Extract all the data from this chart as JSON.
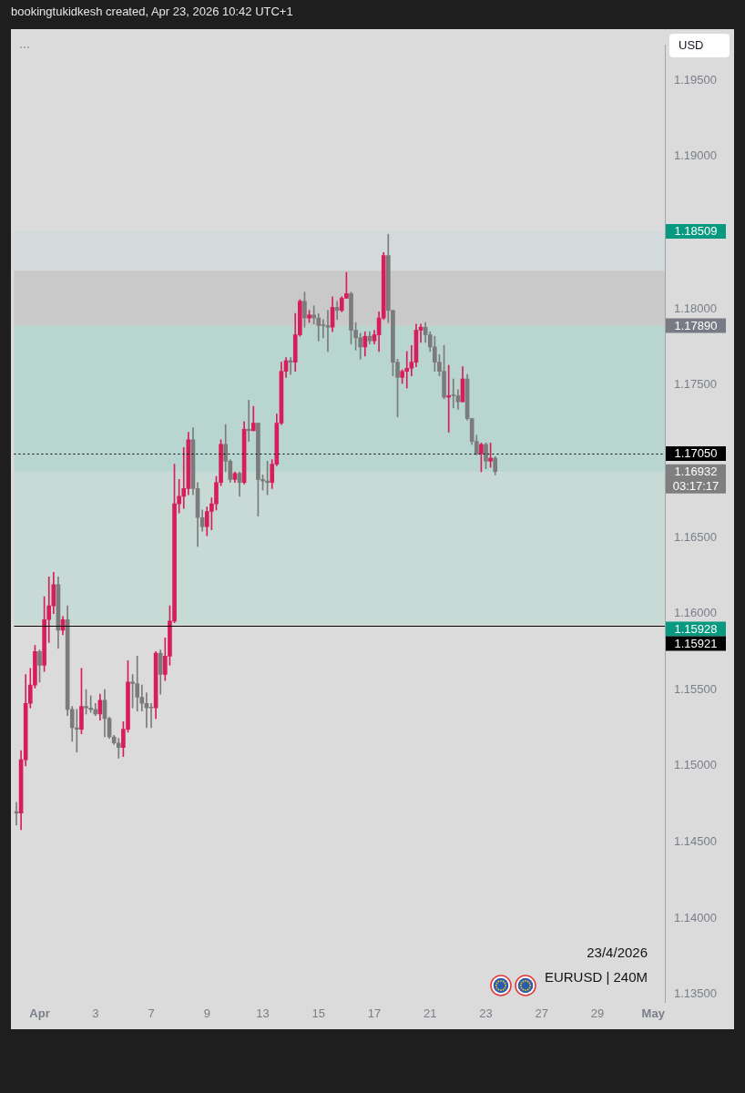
{
  "chart_data": {
    "type": "candlestick",
    "title": "bookingtukidkesh created, Apr 23, 2026 10:42 UTC+1",
    "ylabel": "USD",
    "categories": [
      null,
      null,
      null,
      null,
      null,
      "Apr",
      null,
      null,
      null,
      null,
      null,
      null,
      null,
      null,
      null,
      null,
      null,
      "3",
      null,
      null,
      null,
      null,
      null,
      null,
      null,
      null,
      null,
      null,
      null,
      "7",
      null,
      null,
      null,
      null,
      null,
      null,
      null,
      null,
      null,
      null,
      null,
      "9",
      null,
      null,
      null,
      null,
      null,
      null,
      null,
      null,
      null,
      null,
      null,
      "13",
      null,
      null,
      null,
      null,
      null,
      null,
      null,
      null,
      null,
      null,
      null,
      "15",
      null,
      null,
      null,
      null,
      null,
      null,
      null,
      null,
      null,
      null,
      null,
      "17",
      null,
      null,
      null,
      null,
      null,
      null,
      null,
      null,
      null,
      null,
      null,
      "21",
      null,
      null,
      null,
      null,
      null,
      null,
      null,
      null,
      null,
      null,
      null,
      "23",
      null,
      null,
      null,
      null,
      null,
      null,
      null,
      null,
      null,
      null,
      null,
      "27",
      null,
      null,
      null,
      null,
      null,
      null,
      null,
      null,
      null,
      null,
      null,
      "29",
      null,
      null,
      null,
      null,
      null,
      null,
      null,
      null,
      null,
      null,
      null,
      "May",
      null,
      null
    ],
    "ohlc": [
      [
        1.147,
        1.1476,
        1.1461,
        1.1469
      ],
      [
        1.1469,
        1.151,
        1.1458,
        1.1504
      ],
      [
        1.1504,
        1.156,
        1.15,
        1.1541
      ],
      [
        1.1541,
        1.1564,
        1.1538,
        1.1553
      ],
      [
        1.1553,
        1.1579,
        1.1551,
        1.1575
      ],
      [
        1.1575,
        1.1576,
        1.1555,
        1.1566
      ],
      [
        1.1566,
        1.1611,
        1.1562,
        1.1596
      ],
      [
        1.1596,
        1.1624,
        1.1581,
        1.1605
      ],
      [
        1.1605,
        1.1627,
        1.16,
        1.1619
      ],
      [
        1.1619,
        1.1624,
        1.1577,
        1.1589
      ],
      [
        1.1589,
        1.1598,
        1.1586,
        1.1596
      ],
      [
        1.1596,
        1.1605,
        1.1533,
        1.1537
      ],
      [
        1.1537,
        1.1539,
        1.1516,
        1.1525
      ],
      [
        1.1525,
        1.1537,
        1.1509,
        1.1524
      ],
      [
        1.1524,
        1.1564,
        1.1521,
        1.1539
      ],
      [
        1.1539,
        1.155,
        1.1534,
        1.1538
      ],
      [
        1.1538,
        1.1546,
        1.1535,
        1.1537
      ],
      [
        1.1537,
        1.1541,
        1.1533,
        1.1534
      ],
      [
        1.1534,
        1.1547,
        1.153,
        1.1543
      ],
      [
        1.1543,
        1.155,
        1.1519,
        1.1531
      ],
      [
        1.1531,
        1.1532,
        1.1518,
        1.1519
      ],
      [
        1.1519,
        1.152,
        1.1514,
        1.1515
      ],
      [
        1.1515,
        1.1518,
        1.1505,
        1.1512
      ],
      [
        1.1512,
        1.1529,
        1.1506,
        1.1524
      ],
      [
        1.1524,
        1.1569,
        1.1522,
        1.1555
      ],
      [
        1.1555,
        1.156,
        1.1538,
        1.1554
      ],
      [
        1.1554,
        1.1572,
        1.1536,
        1.1545
      ],
      [
        1.1545,
        1.1553,
        1.1536,
        1.1541
      ],
      [
        1.1541,
        1.1548,
        1.1525,
        1.1538
      ],
      [
        1.1538,
        1.1541,
        1.1525,
        1.1538
      ],
      [
        1.1538,
        1.1575,
        1.1531,
        1.1574
      ],
      [
        1.1574,
        1.1576,
        1.1547,
        1.156
      ],
      [
        1.156,
        1.1584,
        1.1556,
        1.1572
      ],
      [
        1.1572,
        1.1605,
        1.1566,
        1.1595
      ],
      [
        1.1595,
        1.1698,
        1.1594,
        1.1672
      ],
      [
        1.1672,
        1.1688,
        1.1666,
        1.1677
      ],
      [
        1.1677,
        1.1709,
        1.1669,
        1.1682
      ],
      [
        1.1682,
        1.1719,
        1.1678,
        1.1714
      ],
      [
        1.1714,
        1.1722,
        1.1678,
        1.1682
      ],
      [
        1.1682,
        1.1686,
        1.1644,
        1.1663
      ],
      [
        1.1663,
        1.1668,
        1.1654,
        1.1657
      ],
      [
        1.1657,
        1.167,
        1.1651,
        1.1667
      ],
      [
        1.1667,
        1.1676,
        1.1655,
        1.1672
      ],
      [
        1.1672,
        1.169,
        1.1668,
        1.1686
      ],
      [
        1.1686,
        1.1714,
        1.1684,
        1.1711
      ],
      [
        1.1711,
        1.1724,
        1.1693,
        1.17
      ],
      [
        1.17,
        1.1701,
        1.1686,
        1.1688
      ],
      [
        1.1688,
        1.1693,
        1.1686,
        1.1692
      ],
      [
        1.1692,
        1.1693,
        1.1677,
        1.1686
      ],
      [
        1.1686,
        1.1726,
        1.1685,
        1.1721
      ],
      [
        1.1721,
        1.174,
        1.1713,
        1.172
      ],
      [
        1.172,
        1.1736,
        1.172,
        1.1725
      ],
      [
        1.1725,
        1.1725,
        1.1664,
        1.1688
      ],
      [
        1.1688,
        1.1691,
        1.1681,
        1.1687
      ],
      [
        1.1687,
        1.17,
        1.1678,
        1.1686
      ],
      [
        1.1686,
        1.1701,
        1.1682,
        1.1698
      ],
      [
        1.1698,
        1.1731,
        1.1697,
        1.1725
      ],
      [
        1.1725,
        1.1765,
        1.1724,
        1.1759
      ],
      [
        1.1759,
        1.1768,
        1.1755,
        1.1766
      ],
      [
        1.1766,
        1.1768,
        1.1757,
        1.1765
      ],
      [
        1.1765,
        1.1797,
        1.1759,
        1.1783
      ],
      [
        1.1783,
        1.1806,
        1.1782,
        1.1805
      ],
      [
        1.1805,
        1.1811,
        1.1788,
        1.1794
      ],
      [
        1.1794,
        1.1799,
        1.1791,
        1.1796
      ],
      [
        1.1796,
        1.1802,
        1.179,
        1.1794
      ],
      [
        1.1794,
        1.1797,
        1.1779,
        1.1789
      ],
      [
        1.1789,
        1.1793,
        1.1781,
        1.1789
      ],
      [
        1.1789,
        1.1799,
        1.1772,
        1.1788
      ],
      [
        1.1788,
        1.1808,
        1.1785,
        1.1801
      ],
      [
        1.1801,
        1.1805,
        1.1793,
        1.1799
      ],
      [
        1.1799,
        1.1808,
        1.1798,
        1.1807
      ],
      [
        1.1807,
        1.1824,
        1.1807,
        1.181
      ],
      [
        1.181,
        1.1811,
        1.1777,
        1.1786
      ],
      [
        1.1786,
        1.1791,
        1.1773,
        1.1781
      ],
      [
        1.1781,
        1.1784,
        1.1767,
        1.1775
      ],
      [
        1.1775,
        1.1785,
        1.1769,
        1.1782
      ],
      [
        1.1782,
        1.1785,
        1.1777,
        1.1779
      ],
      [
        1.1779,
        1.1786,
        1.1777,
        1.1783
      ],
      [
        1.1783,
        1.1798,
        1.1772,
        1.1794
      ],
      [
        1.1794,
        1.1837,
        1.1793,
        1.1835
      ],
      [
        1.1835,
        1.1849,
        1.1791,
        1.1799
      ],
      [
        1.1799,
        1.1799,
        1.1756,
        1.1765
      ],
      [
        1.1765,
        1.1767,
        1.1729,
        1.1755
      ],
      [
        1.1755,
        1.176,
        1.1751,
        1.1759
      ],
      [
        1.1759,
        1.1772,
        1.1748,
        1.1761
      ],
      [
        1.1761,
        1.1776,
        1.1756,
        1.1765
      ],
      [
        1.1765,
        1.179,
        1.1762,
        1.1786
      ],
      [
        1.1786,
        1.179,
        1.1778,
        1.1788
      ],
      [
        1.1788,
        1.1791,
        1.1778,
        1.1783
      ],
      [
        1.1783,
        1.1785,
        1.1772,
        1.1775
      ],
      [
        1.1775,
        1.1782,
        1.1759,
        1.1765
      ],
      [
        1.1765,
        1.177,
        1.1756,
        1.1759
      ],
      [
        1.1759,
        1.1776,
        1.1741,
        1.1742
      ],
      [
        1.1742,
        1.1763,
        1.1719,
        1.1743
      ],
      [
        1.1743,
        1.1754,
        1.1735,
        1.1743
      ],
      [
        1.1743,
        1.1747,
        1.1734,
        1.1739
      ],
      [
        1.1739,
        1.1762,
        1.1739,
        1.1754
      ],
      [
        1.1754,
        1.1757,
        1.1727,
        1.1728
      ],
      [
        1.1728,
        1.1728,
        1.1711,
        1.1713
      ],
      [
        1.1713,
        1.1717,
        1.1704,
        1.1705
      ],
      [
        1.1705,
        1.1712,
        1.1693,
        1.1711
      ],
      [
        1.1711,
        1.1712,
        1.1695,
        1.17
      ],
      [
        1.17,
        1.1712,
        1.1696,
        1.1702
      ],
      [
        1.1702,
        1.1703,
        1.1691,
        1.16932
      ],
      null,
      null,
      null,
      null,
      null,
      null,
      null,
      null,
      null,
      null,
      null,
      null,
      null,
      null,
      null,
      null,
      null,
      null,
      null,
      null,
      null,
      null,
      null,
      null,
      null,
      null,
      null,
      null,
      null,
      null,
      null,
      null,
      null,
      null,
      null,
      null
    ],
    "colors": [
      "#7b7b7b",
      "#d81e5a",
      "#d81e5a",
      "#d81e5a",
      "#d81e5a",
      "#7b7b7b",
      "#d81e5a",
      "#d81e5a",
      "#d81e5a",
      "#7b7b7b",
      "#d81e5a",
      "#7b7b7b",
      "#7b7b7b",
      "#7b7b7b",
      "#d81e5a",
      "#7b7b7b",
      "#7b7b7b",
      "#7b7b7b",
      "#d81e5a",
      "#7b7b7b",
      "#7b7b7b",
      "#7b7b7b",
      "#7b7b7b",
      "#d81e5a",
      "#d81e5a",
      "#7b7b7b",
      "#7b7b7b",
      "#7b7b7b",
      "#7b7b7b",
      "#7b7b7b",
      "#d81e5a",
      "#7b7b7b",
      "#d81e5a",
      "#d81e5a",
      "#d81e5a",
      "#d81e5a",
      "#d81e5a",
      "#d81e5a",
      "#7b7b7b",
      "#7b7b7b",
      "#7b7b7b",
      "#d81e5a",
      "#d81e5a",
      "#d81e5a",
      "#d81e5a",
      "#7b7b7b",
      "#7b7b7b",
      "#d81e5a",
      "#7b7b7b",
      "#d81e5a",
      "#7b7b7b",
      "#d81e5a",
      "#7b7b7b",
      "#7b7b7b",
      "#7b7b7b",
      "#d81e5a",
      "#d81e5a",
      "#d81e5a",
      "#d81e5a",
      "#7b7b7b",
      "#d81e5a",
      "#d81e5a",
      "#7b7b7b",
      "#d81e5a",
      "#7b7b7b",
      "#7b7b7b",
      "#7b7b7b",
      "#7b7b7b",
      "#d81e5a",
      "#7b7b7b",
      "#d81e5a",
      "#d81e5a",
      "#7b7b7b",
      "#7b7b7b",
      "#7b7b7b",
      "#d81e5a",
      "#7b7b7b",
      "#d81e5a",
      "#d81e5a",
      "#d81e5a",
      "#7b7b7b",
      "#7b7b7b",
      "#7b7b7b",
      "#d81e5a",
      "#d81e5a",
      "#d81e5a",
      "#d81e5a",
      "#d81e5a",
      "#7b7b7b",
      "#7b7b7b",
      "#7b7b7b",
      "#7b7b7b",
      "#7b7b7b",
      "#d81e5a",
      "#7b7b7b",
      "#7b7b7b",
      "#d81e5a",
      "#7b7b7b",
      "#7b7b7b",
      "#7b7b7b",
      "#d81e5a",
      "#7b7b7b",
      "#d81e5a",
      "#7b7b7b",
      null,
      null,
      null,
      null,
      null,
      null,
      null,
      null,
      null,
      null,
      null,
      null,
      null,
      null,
      null,
      null,
      null,
      null,
      null,
      null,
      null,
      null,
      null,
      null,
      null,
      null,
      null,
      null,
      null,
      null,
      null,
      null,
      null,
      null,
      null,
      null
    ],
    "ylim": [
      1.1345,
      1.1973
    ],
    "yticks": [
      {
        "value": 1.135,
        "label": "1.13500"
      },
      {
        "value": 1.14,
        "label": "1.14000"
      },
      {
        "value": 1.145,
        "label": "1.14500"
      },
      {
        "value": 1.15,
        "label": "1.15000"
      },
      {
        "value": 1.155,
        "label": "1.15500"
      },
      {
        "value": 1.16,
        "label": "1.16000"
      },
      {
        "value": 1.165,
        "label": "1.16500"
      },
      {
        "value": 1.175,
        "label": "1.17500"
      },
      {
        "value": 1.18,
        "label": "1.18000"
      },
      {
        "value": 1.19,
        "label": "1.19000"
      },
      {
        "value": 1.195,
        "label": "1.19500"
      }
    ],
    "bands": [
      {
        "axis": "y",
        "from": 1.1789,
        "to": 1.18509,
        "label": "1.18509",
        "color": "#d3dadc"
      },
      {
        "axis": "y",
        "from": 1.1789,
        "to": 1.15928,
        "label": "1.15928",
        "color": "#c7dad6"
      },
      {
        "axis": "y",
        "from": 1.1789,
        "to": 1.16932,
        "label": "1.16932\n03:17:17",
        "color": "#b9d5cf"
      },
      {
        "axis": "y",
        "from": 1.1825,
        "to": 1.1789,
        "label": "1.17890",
        "color": "#c9c9c9"
      }
    ],
    "ref_lines": [
      {
        "axis": "y",
        "value": 1.1705,
        "label": "1.17050",
        "color": "#000000",
        "line_style": "dotted"
      },
      {
        "axis": "y",
        "value": 1.15921,
        "label": "1.15921",
        "color": "#000000"
      }
    ],
    "annotations": [
      "23/4/2026",
      "EURUSD | 240M"
    ]
  }
}
